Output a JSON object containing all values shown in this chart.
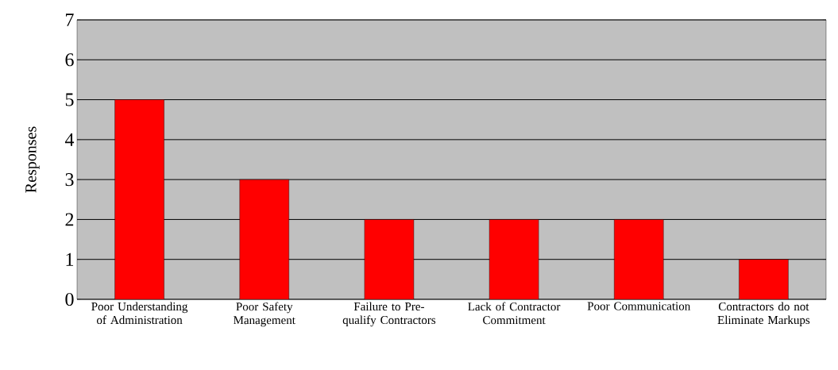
{
  "chart_data": {
    "type": "bar",
    "ylabel": "Responses",
    "categories": [
      "Poor Understanding of Administration",
      "Poor Safety Management",
      "Failure to Pre-qualify Contractors",
      "Lack of Contractor Commitment",
      "Poor Communication",
      "Contractors do not Eliminate Markups"
    ],
    "values": [
      5,
      3,
      2,
      2,
      2,
      1
    ],
    "color": "#ff0000",
    "ylim": [
      0,
      7
    ],
    "yticks": [
      0,
      1,
      2,
      3,
      4,
      5,
      6,
      7
    ],
    "grid": "y"
  }
}
